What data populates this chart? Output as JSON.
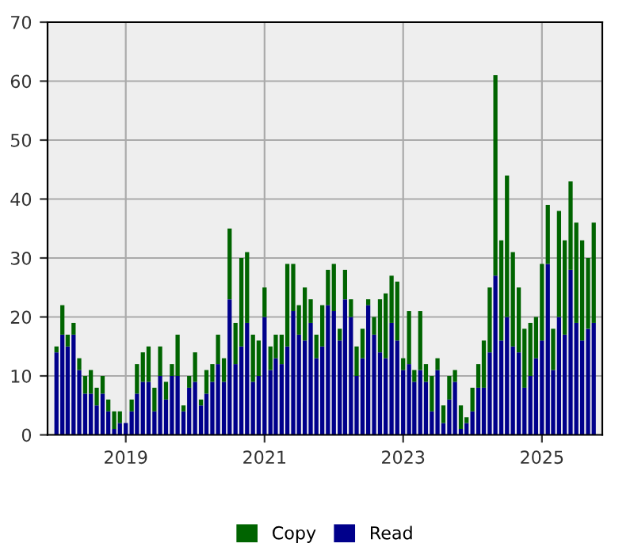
{
  "chart_data": {
    "type": "bar",
    "stacked": true,
    "x": [
      "2018-01",
      "2018-02",
      "2018-03",
      "2018-04",
      "2018-05",
      "2018-06",
      "2018-07",
      "2018-08",
      "2018-09",
      "2018-10",
      "2018-11",
      "2018-12",
      "2019-01",
      "2019-02",
      "2019-03",
      "2019-04",
      "2019-05",
      "2019-06",
      "2019-07",
      "2019-08",
      "2019-09",
      "2019-10",
      "2019-11",
      "2019-12",
      "2020-01",
      "2020-02",
      "2020-03",
      "2020-04",
      "2020-05",
      "2020-06",
      "2020-07",
      "2020-08",
      "2020-09",
      "2020-10",
      "2020-11",
      "2020-12",
      "2021-01",
      "2021-02",
      "2021-03",
      "2021-04",
      "2021-05",
      "2021-06",
      "2021-07",
      "2021-08",
      "2021-09",
      "2021-10",
      "2021-11",
      "2021-12",
      "2022-01",
      "2022-02",
      "2022-03",
      "2022-04",
      "2022-05",
      "2022-06",
      "2022-07",
      "2022-08",
      "2022-09",
      "2022-10",
      "2022-11",
      "2022-12",
      "2023-01",
      "2023-02",
      "2023-03",
      "2023-04",
      "2023-05",
      "2023-06",
      "2023-07",
      "2023-08",
      "2023-09",
      "2023-10",
      "2023-11",
      "2023-12",
      "2024-01",
      "2024-02",
      "2024-03",
      "2024-04",
      "2024-05",
      "2024-06",
      "2024-07",
      "2024-08",
      "2024-09",
      "2024-10",
      "2024-11",
      "2024-12",
      "2025-01",
      "2025-02",
      "2025-03",
      "2025-04",
      "2025-05",
      "2025-06",
      "2025-07",
      "2025-08",
      "2025-09",
      "2025-10"
    ],
    "series": [
      {
        "name": "Read",
        "color": "#00008b",
        "values": [
          14,
          17,
          15,
          17,
          11,
          7,
          7,
          5,
          7,
          4,
          1,
          2,
          2,
          4,
          7,
          9,
          9,
          4,
          10,
          6,
          10,
          10,
          4,
          8,
          9,
          5,
          7,
          9,
          12,
          9,
          23,
          12,
          15,
          19,
          9,
          10,
          20,
          11,
          13,
          12,
          15,
          21,
          17,
          16,
          19,
          13,
          15,
          22,
          21,
          16,
          23,
          20,
          10,
          13,
          22,
          17,
          14,
          13,
          19,
          16,
          11,
          12,
          9,
          11,
          9,
          4,
          11,
          2,
          6,
          9,
          1,
          2,
          4,
          8,
          8,
          14,
          27,
          16,
          20,
          15,
          14,
          8,
          10,
          13,
          16,
          29,
          11,
          20,
          17,
          28,
          19,
          16,
          18,
          19
        ]
      },
      {
        "name": "Copy",
        "color": "#006400",
        "values": [
          1,
          5,
          2,
          2,
          2,
          3,
          4,
          3,
          3,
          2,
          3,
          2,
          0,
          2,
          5,
          5,
          6,
          4,
          5,
          3,
          2,
          7,
          1,
          2,
          5,
          1,
          4,
          3,
          5,
          4,
          12,
          7,
          15,
          12,
          8,
          6,
          5,
          4,
          4,
          5,
          14,
          8,
          5,
          9,
          4,
          4,
          7,
          6,
          8,
          2,
          5,
          3,
          5,
          5,
          1,
          3,
          9,
          11,
          8,
          10,
          2,
          9,
          2,
          10,
          3,
          6,
          2,
          3,
          4,
          2,
          4,
          1,
          4,
          4,
          8,
          11,
          34,
          17,
          24,
          16,
          11,
          10,
          9,
          7,
          13,
          10,
          7,
          18,
          16,
          15,
          17,
          17,
          12,
          17
        ]
      }
    ],
    "xlim": [
      "2017-11-15",
      "2025-11-15"
    ],
    "xticks": [
      {
        "value": "2019-01-01",
        "label": "2019"
      },
      {
        "value": "2021-01-01",
        "label": "2021"
      },
      {
        "value": "2023-01-01",
        "label": "2023"
      },
      {
        "value": "2025-01-01",
        "label": "2025"
      }
    ],
    "ylim": [
      0,
      70
    ],
    "yticks": [
      0,
      10,
      20,
      30,
      40,
      50,
      60,
      70
    ],
    "grid": true,
    "legend": "bottom"
  }
}
